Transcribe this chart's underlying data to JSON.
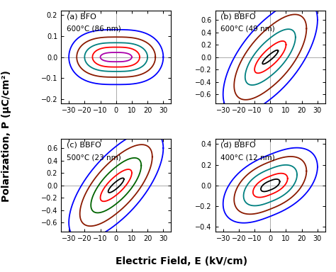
{
  "subplots": [
    {
      "label": "(a) BFO",
      "subtitle": "600°C (86 nm)",
      "ylim": [
        -0.22,
        0.22
      ],
      "xlim": [
        -35,
        35
      ],
      "yticks": [
        -0.2,
        -0.1,
        0.0,
        0.1,
        0.2
      ],
      "xticks": [
        -30,
        -20,
        -10,
        0,
        10,
        20,
        30
      ],
      "loops": [
        {
          "E_max": 30,
          "P_max": 0.13,
          "Ec": 7,
          "tilt": 0.0,
          "squeeze": 0.55,
          "color": "#0000FF",
          "lw": 1.3
        },
        {
          "E_max": 25,
          "P_max": 0.095,
          "Ec": 6.5,
          "tilt": 0.0,
          "squeeze": 0.55,
          "color": "#8B1A00",
          "lw": 1.3
        },
        {
          "E_max": 20,
          "P_max": 0.068,
          "Ec": 6,
          "tilt": 0.0,
          "squeeze": 0.55,
          "color": "#008080",
          "lw": 1.3
        },
        {
          "E_max": 15,
          "P_max": 0.047,
          "Ec": 5,
          "tilt": 0.0,
          "squeeze": 0.55,
          "color": "#FF0000",
          "lw": 1.3
        },
        {
          "E_max": 10,
          "P_max": 0.022,
          "Ec": 3.5,
          "tilt": 0.0,
          "squeeze": 0.55,
          "color": "#AA00AA",
          "lw": 1.3
        }
      ]
    },
    {
      "label": "(b) BBFO",
      "subtitle": "600°C (49 nm)",
      "ylim": [
        -0.75,
        0.75
      ],
      "xlim": [
        -35,
        35
      ],
      "yticks": [
        -0.6,
        -0.4,
        -0.2,
        0.0,
        0.2,
        0.4,
        0.6
      ],
      "xticks": [
        -30,
        -20,
        -10,
        0,
        10,
        20,
        30
      ],
      "loops": [
        {
          "E_max": 30,
          "P_max": 0.68,
          "Ec": 3,
          "tilt": 0.02,
          "squeeze": 0.12,
          "color": "#0000FF",
          "lw": 1.3
        },
        {
          "E_max": 23,
          "P_max": 0.5,
          "Ec": 2.5,
          "tilt": 0.02,
          "squeeze": 0.12,
          "color": "#8B1A00",
          "lw": 1.3
        },
        {
          "E_max": 16,
          "P_max": 0.31,
          "Ec": 2.0,
          "tilt": 0.02,
          "squeeze": 0.12,
          "color": "#008080",
          "lw": 1.3
        },
        {
          "E_max": 10,
          "P_max": 0.16,
          "Ec": 1.5,
          "tilt": 0.02,
          "squeeze": 0.12,
          "color": "#FF0000",
          "lw": 1.3
        },
        {
          "E_max": 5,
          "P_max": 0.05,
          "Ec": 0.8,
          "tilt": 0.02,
          "squeeze": 0.12,
          "color": "#000000",
          "lw": 1.3
        }
      ]
    },
    {
      "label": "(c) BBFO",
      "subtitle": "500°C (23 nm)",
      "ylim": [
        -0.75,
        0.75
      ],
      "xlim": [
        -35,
        35
      ],
      "yticks": [
        -0.6,
        -0.4,
        -0.2,
        0.0,
        0.2,
        0.4,
        0.6
      ],
      "xticks": [
        -30,
        -20,
        -10,
        0,
        10,
        20,
        30
      ],
      "loops": [
        {
          "E_max": 30,
          "P_max": 0.63,
          "Ec": 2.5,
          "tilt": 0.02,
          "squeeze": 0.1,
          "color": "#0000FF",
          "lw": 1.3
        },
        {
          "E_max": 23,
          "P_max": 0.46,
          "Ec": 2.0,
          "tilt": 0.02,
          "squeeze": 0.1,
          "color": "#8B1A00",
          "lw": 1.3
        },
        {
          "E_max": 16,
          "P_max": 0.3,
          "Ec": 1.5,
          "tilt": 0.02,
          "squeeze": 0.1,
          "color": "#006400",
          "lw": 1.3
        },
        {
          "E_max": 10,
          "P_max": 0.16,
          "Ec": 1.0,
          "tilt": 0.02,
          "squeeze": 0.1,
          "color": "#FF0000",
          "lw": 1.3
        },
        {
          "E_max": 5,
          "P_max": 0.06,
          "Ec": 0.5,
          "tilt": 0.02,
          "squeeze": 0.1,
          "color": "#000000",
          "lw": 1.3
        }
      ]
    },
    {
      "label": "(d) BBFO",
      "subtitle": "400°C (12 nm)",
      "ylim": [
        -0.45,
        0.45
      ],
      "xlim": [
        -35,
        35
      ],
      "yticks": [
        -0.4,
        -0.2,
        0.0,
        0.2,
        0.4
      ],
      "xticks": [
        -30,
        -20,
        -10,
        0,
        10,
        20,
        30
      ],
      "loops": [
        {
          "E_max": 30,
          "P_max": 0.3,
          "Ec": 4,
          "tilt": 0.006,
          "squeeze": 0.35,
          "color": "#0000FF",
          "lw": 1.3
        },
        {
          "E_max": 23,
          "P_max": 0.23,
          "Ec": 3.5,
          "tilt": 0.006,
          "squeeze": 0.35,
          "color": "#8B1A00",
          "lw": 1.3
        },
        {
          "E_max": 17,
          "P_max": 0.16,
          "Ec": 3.0,
          "tilt": 0.006,
          "squeeze": 0.35,
          "color": "#008080",
          "lw": 1.3
        },
        {
          "E_max": 11,
          "P_max": 0.09,
          "Ec": 2.5,
          "tilt": 0.006,
          "squeeze": 0.35,
          "color": "#FF0000",
          "lw": 1.3
        },
        {
          "E_max": 6,
          "P_max": 0.045,
          "Ec": 2.0,
          "tilt": 0.006,
          "squeeze": 0.35,
          "color": "#000000",
          "lw": 1.3
        }
      ]
    }
  ],
  "xlabel": "Electric Field, E (kV/cm)",
  "ylabel": "Polarization, P (μC/cm²)",
  "fig_bg": "#FFFFFF",
  "axes_bg": "#FFFFFF",
  "crosshair_color": "#AAAAAA",
  "tick_fontsize": 7,
  "subplot_label_fontsize": 8,
  "axes_label_fontsize": 10
}
